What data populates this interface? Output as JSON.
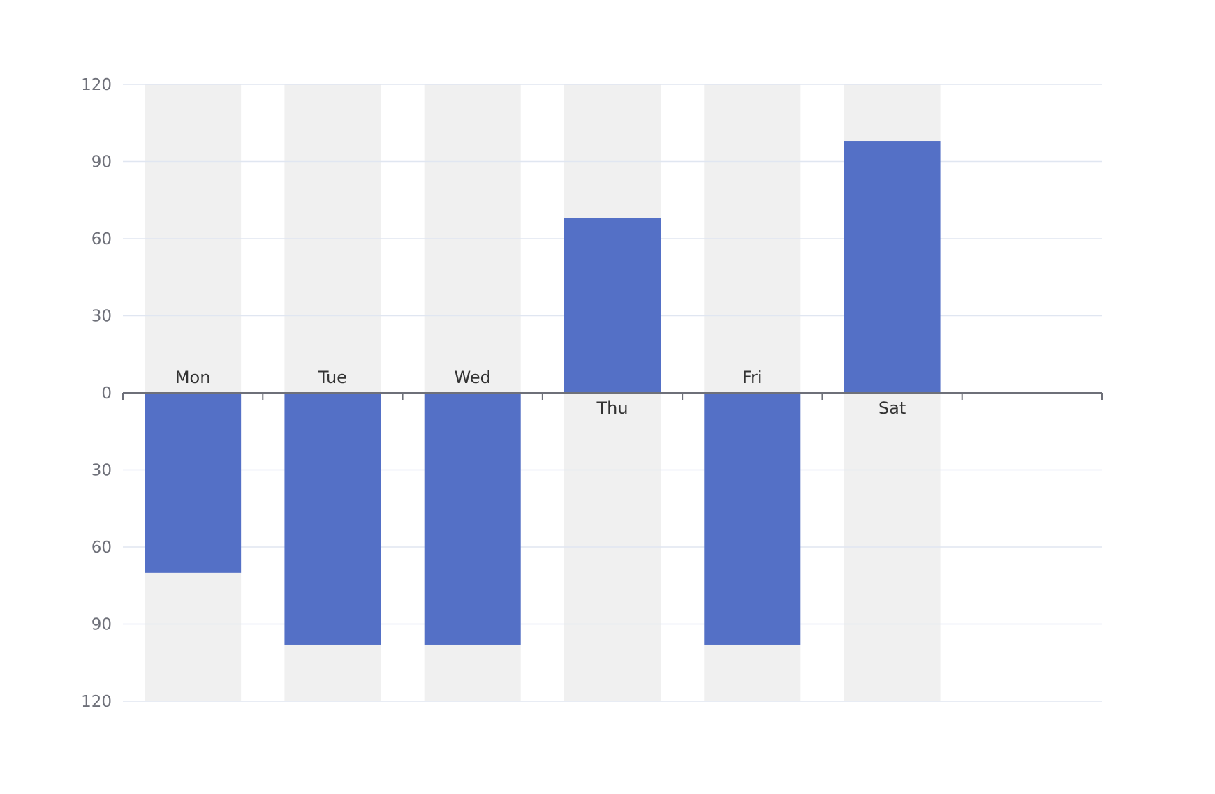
{
  "chart_data": {
    "type": "bar",
    "categories": [
      "Mon",
      "Tue",
      "Wed",
      "Thu",
      "Fri",
      "Sat"
    ],
    "values": [
      -70,
      -98,
      -98,
      68,
      -98,
      98
    ],
    "y_tick_labels": [
      "120",
      "90",
      "60",
      "30",
      "0",
      "30",
      "60",
      "90",
      "120"
    ],
    "ylim": [
      -120,
      120
    ],
    "grid": true,
    "show_background": true,
    "category_slots": 7,
    "colors": {
      "bar": "#5470c6",
      "background_band": "#f0f0f0",
      "grid_line": "#e0e6f1",
      "axis_line": "#6e7079",
      "tick_label": "#6e7079",
      "category_label": "#333333"
    }
  }
}
